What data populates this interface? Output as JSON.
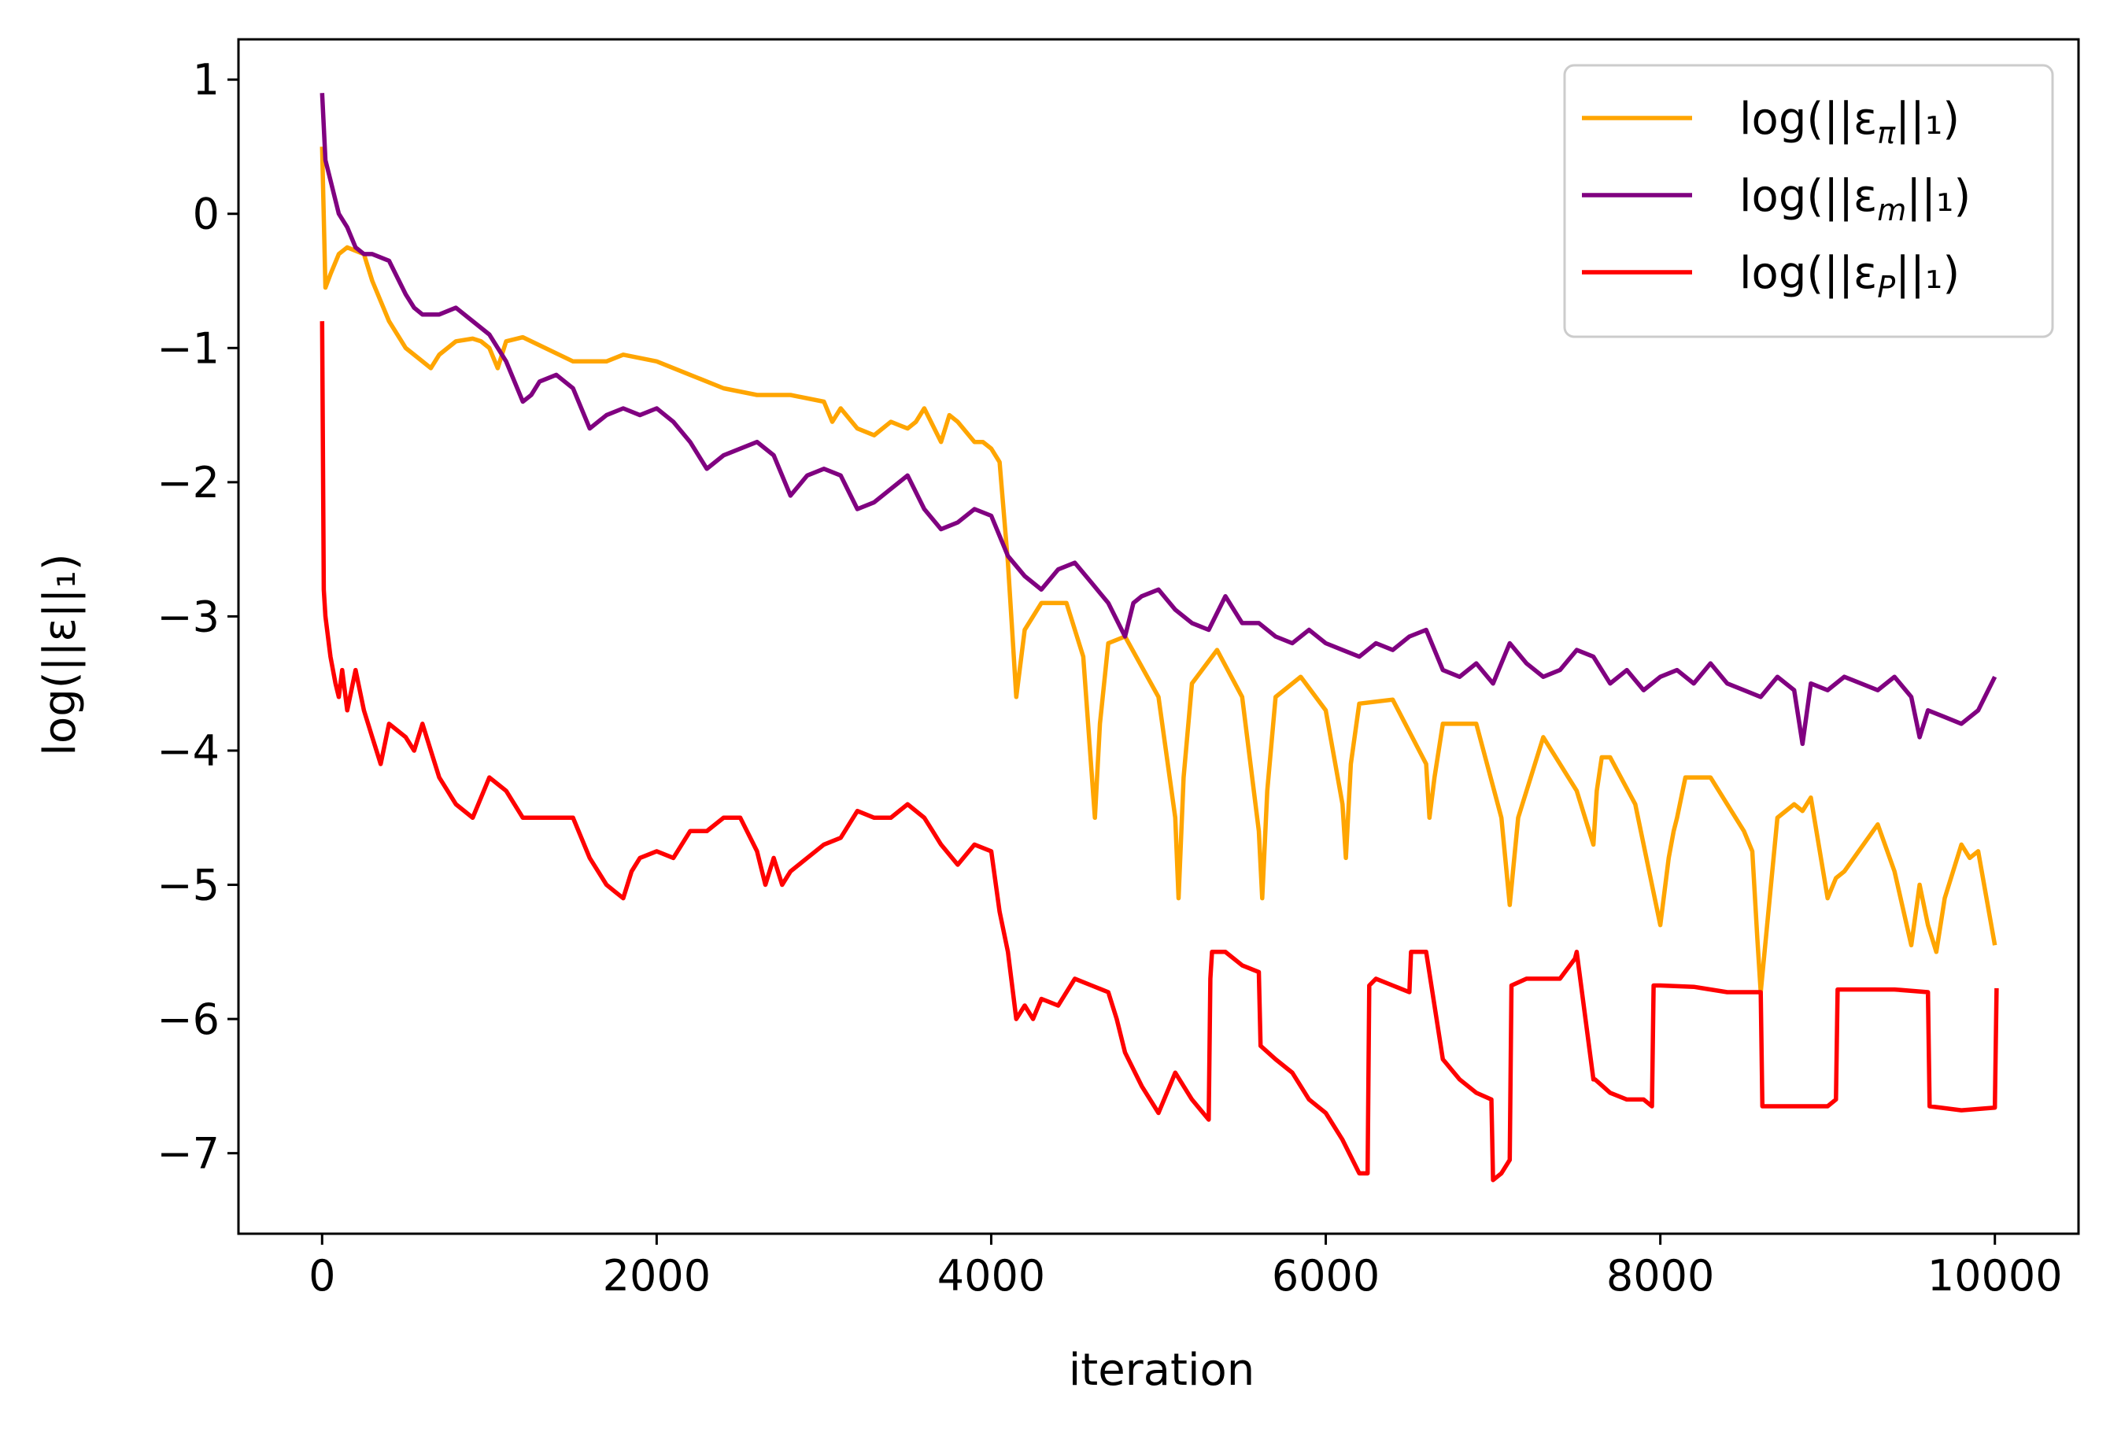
{
  "chart_data": {
    "type": "line",
    "title": "",
    "xlabel": "iteration",
    "ylabel": "log(||ε||₁)",
    "xlim": [
      -500,
      10500
    ],
    "ylim": [
      -7.6,
      1.3
    ],
    "xticks": [
      0,
      2000,
      4000,
      6000,
      8000,
      10000
    ],
    "xtick_labels": [
      "0",
      "2000",
      "4000",
      "6000",
      "8000",
      "10000"
    ],
    "yticks": [
      1,
      0,
      -1,
      -2,
      -3,
      -4,
      -5,
      -6,
      -7
    ],
    "ytick_labels": [
      "1",
      "0",
      "−1",
      "−2",
      "−3",
      "−4",
      "−5",
      "−6",
      "−7"
    ],
    "grid": false,
    "legend_position": "top-right",
    "series": [
      {
        "name": "log(||επ||₁)",
        "legend_label": {
          "prefix": "log(||ε",
          "sub": "π",
          "suffix": "||₁)"
        },
        "color": "#ffa500",
        "x": [
          0,
          20,
          50,
          100,
          150,
          250,
          300,
          400,
          500,
          600,
          650,
          700,
          800,
          900,
          950,
          1000,
          1050,
          1100,
          1200,
          1300,
          1500,
          1700,
          1800,
          2000,
          2200,
          2400,
          2600,
          2800,
          3000,
          3050,
          3100,
          3200,
          3300,
          3400,
          3500,
          3550,
          3600,
          3700,
          3750,
          3800,
          3900,
          3950,
          4000,
          4050,
          4100,
          4130,
          4150,
          4200,
          4300,
          4450,
          4550,
          4620,
          4650,
          4700,
          4800,
          5000,
          5100,
          5120,
          5150,
          5200,
          5350,
          5500,
          5600,
          5620,
          5650,
          5700,
          5850,
          6000,
          6100,
          6120,
          6150,
          6200,
          6400,
          6600,
          6620,
          6650,
          6700,
          6900,
          7050,
          7100,
          7150,
          7300,
          7500,
          7600,
          7620,
          7650,
          7700,
          7850,
          8000,
          8050,
          8080,
          8100,
          8150,
          8300,
          8500,
          8550,
          8580,
          8600,
          8700,
          8800,
          8850,
          8900,
          9000,
          9050,
          9100,
          9300,
          9400,
          9500,
          9550,
          9600,
          9650,
          9700,
          9800,
          9850,
          9900,
          10000
        ],
        "y": [
          0.5,
          -0.55,
          -0.45,
          -0.3,
          -0.25,
          -0.3,
          -0.5,
          -0.8,
          -1.0,
          -1.1,
          -1.15,
          -1.05,
          -0.95,
          -0.93,
          -0.95,
          -1.0,
          -1.15,
          -0.95,
          -0.92,
          -0.98,
          -1.1,
          -1.1,
          -1.05,
          -1.1,
          -1.2,
          -1.3,
          -1.35,
          -1.35,
          -1.4,
          -1.55,
          -1.45,
          -1.6,
          -1.65,
          -1.55,
          -1.6,
          -1.55,
          -1.45,
          -1.7,
          -1.5,
          -1.55,
          -1.7,
          -1.7,
          -1.75,
          -1.85,
          -2.6,
          -3.2,
          -3.6,
          -3.1,
          -2.9,
          -2.9,
          -3.3,
          -4.5,
          -3.8,
          -3.2,
          -3.15,
          -3.6,
          -4.5,
          -5.1,
          -4.2,
          -3.5,
          -3.25,
          -3.6,
          -4.6,
          -5.1,
          -4.3,
          -3.6,
          -3.45,
          -3.7,
          -4.4,
          -4.8,
          -4.1,
          -3.65,
          -3.62,
          -4.1,
          -4.5,
          -4.2,
          -3.8,
          -3.8,
          -4.5,
          -5.15,
          -4.5,
          -3.9,
          -4.3,
          -4.7,
          -4.3,
          -4.05,
          -4.05,
          -4.4,
          -5.3,
          -4.8,
          -4.6,
          -4.5,
          -4.2,
          -4.2,
          -4.6,
          -4.75,
          -5.4,
          -5.8,
          -4.5,
          -4.4,
          -4.45,
          -4.35,
          -5.1,
          -4.95,
          -4.9,
          -4.55,
          -4.9,
          -5.45,
          -5.0,
          -5.3,
          -5.5,
          -5.1,
          -4.7,
          -4.8,
          -4.75,
          -5.45
        ]
      },
      {
        "name": "log(||εm||₁)",
        "legend_label": {
          "prefix": "log(||ε",
          "sub": "m",
          "suffix": "||₁)"
        },
        "color": "#800080",
        "x": [
          0,
          20,
          50,
          100,
          150,
          200,
          250,
          300,
          400,
          500,
          550,
          600,
          700,
          800,
          900,
          1000,
          1100,
          1200,
          1250,
          1300,
          1400,
          1500,
          1600,
          1700,
          1800,
          1900,
          2000,
          2100,
          2200,
          2300,
          2400,
          2500,
          2600,
          2700,
          2800,
          2900,
          3000,
          3100,
          3200,
          3300,
          3400,
          3500,
          3600,
          3700,
          3800,
          3900,
          4000,
          4100,
          4200,
          4300,
          4400,
          4500,
          4600,
          4700,
          4800,
          4850,
          4900,
          5000,
          5100,
          5200,
          5300,
          5400,
          5500,
          5600,
          5700,
          5800,
          5900,
          6000,
          6100,
          6200,
          6300,
          6400,
          6500,
          6600,
          6700,
          6800,
          6900,
          7000,
          7100,
          7200,
          7300,
          7400,
          7500,
          7600,
          7700,
          7800,
          7900,
          8000,
          8100,
          8200,
          8300,
          8400,
          8500,
          8600,
          8700,
          8800,
          8850,
          8900,
          9000,
          9100,
          9200,
          9300,
          9400,
          9500,
          9550,
          9600,
          9700,
          9800,
          9900,
          10000
        ],
        "y": [
          0.9,
          0.4,
          0.25,
          0.0,
          -0.1,
          -0.25,
          -0.3,
          -0.3,
          -0.35,
          -0.6,
          -0.7,
          -0.75,
          -0.75,
          -0.7,
          -0.8,
          -0.9,
          -1.1,
          -1.4,
          -1.35,
          -1.25,
          -1.2,
          -1.3,
          -1.6,
          -1.5,
          -1.45,
          -1.5,
          -1.45,
          -1.55,
          -1.7,
          -1.9,
          -1.8,
          -1.75,
          -1.7,
          -1.8,
          -2.1,
          -1.95,
          -1.9,
          -1.95,
          -2.2,
          -2.15,
          -2.05,
          -1.95,
          -2.2,
          -2.35,
          -2.3,
          -2.2,
          -2.25,
          -2.55,
          -2.7,
          -2.8,
          -2.65,
          -2.6,
          -2.75,
          -2.9,
          -3.15,
          -2.9,
          -2.85,
          -2.8,
          -2.95,
          -3.05,
          -3.1,
          -2.85,
          -3.05,
          -3.05,
          -3.15,
          -3.2,
          -3.1,
          -3.2,
          -3.25,
          -3.3,
          -3.2,
          -3.25,
          -3.15,
          -3.1,
          -3.4,
          -3.45,
          -3.35,
          -3.5,
          -3.2,
          -3.35,
          -3.45,
          -3.4,
          -3.25,
          -3.3,
          -3.5,
          -3.4,
          -3.55,
          -3.45,
          -3.4,
          -3.5,
          -3.35,
          -3.5,
          -3.55,
          -3.6,
          -3.45,
          -3.55,
          -3.95,
          -3.5,
          -3.55,
          -3.45,
          -3.5,
          -3.55,
          -3.45,
          -3.6,
          -3.9,
          -3.7,
          -3.75,
          -3.8,
          -3.7,
          -3.45
        ]
      },
      {
        "name": "log(||εP||₁)",
        "legend_label": {
          "prefix": "log(||ε",
          "sub": "P",
          "suffix": "||₁)"
        },
        "color": "#ff0000",
        "x": [
          0,
          10,
          20,
          50,
          80,
          100,
          120,
          150,
          200,
          250,
          300,
          350,
          400,
          500,
          550,
          600,
          650,
          700,
          750,
          800,
          900,
          1000,
          1100,
          1200,
          1300,
          1400,
          1500,
          1600,
          1700,
          1750,
          1800,
          1850,
          1900,
          2000,
          2100,
          2200,
          2300,
          2400,
          2500,
          2600,
          2650,
          2700,
          2750,
          2800,
          2900,
          3000,
          3100,
          3200,
          3300,
          3400,
          3500,
          3600,
          3650,
          3700,
          3800,
          3900,
          4000,
          4050,
          4100,
          4150,
          4200,
          4250,
          4300,
          4400,
          4500,
          4600,
          4700,
          4750,
          4800,
          4900,
          5000,
          5100,
          5200,
          5300,
          5310,
          5320,
          5400,
          5500,
          5600,
          5610,
          5700,
          5800,
          5900,
          6000,
          6100,
          6200,
          6250,
          6260,
          6300,
          6400,
          6500,
          6510,
          6600,
          6700,
          6800,
          6900,
          6990,
          7000,
          7050,
          7100,
          7110,
          7200,
          7400,
          7490,
          7500,
          7600,
          7610,
          7700,
          7800,
          7900,
          7950,
          7960,
          8000,
          8200,
          8400,
          8600,
          8610,
          8800,
          9000,
          9050,
          9060,
          9200,
          9400,
          9600,
          9610,
          9800,
          10000,
          10010
        ],
        "y": [
          -0.8,
          -2.8,
          -3.0,
          -3.3,
          -3.5,
          -3.6,
          -3.4,
          -3.7,
          -3.4,
          -3.7,
          -3.9,
          -4.1,
          -3.8,
          -3.9,
          -4.0,
          -3.8,
          -4.0,
          -4.2,
          -4.3,
          -4.4,
          -4.5,
          -4.2,
          -4.3,
          -4.5,
          -4.5,
          -4.5,
          -4.5,
          -4.8,
          -5.0,
          -5.05,
          -5.1,
          -4.9,
          -4.8,
          -4.75,
          -4.8,
          -4.6,
          -4.6,
          -4.5,
          -4.5,
          -4.75,
          -5.0,
          -4.8,
          -5.0,
          -4.9,
          -4.8,
          -4.7,
          -4.65,
          -4.45,
          -4.5,
          -4.5,
          -4.4,
          -4.5,
          -4.6,
          -4.7,
          -4.85,
          -4.7,
          -4.75,
          -5.2,
          -5.5,
          -6.0,
          -5.9,
          -6.0,
          -5.85,
          -5.9,
          -5.7,
          -5.75,
          -5.8,
          -6.0,
          -6.25,
          -6.5,
          -6.7,
          -6.4,
          -6.6,
          -6.75,
          -5.7,
          -5.5,
          -5.5,
          -5.6,
          -5.65,
          -6.2,
          -6.3,
          -6.4,
          -6.6,
          -6.7,
          -6.9,
          -7.15,
          -7.15,
          -5.75,
          -5.7,
          -5.75,
          -5.8,
          -5.5,
          -5.5,
          -6.3,
          -6.45,
          -6.55,
          -6.6,
          -7.2,
          -7.15,
          -7.05,
          -5.75,
          -5.7,
          -5.7,
          -5.55,
          -5.5,
          -6.45,
          -6.45,
          -6.55,
          -6.6,
          -6.6,
          -6.65,
          -5.75,
          -5.75,
          -5.76,
          -5.8,
          -5.8,
          -6.65,
          -6.65,
          -6.65,
          -6.6,
          -5.78,
          -5.78,
          -5.78,
          -5.8,
          -6.65,
          -6.68,
          -6.66,
          -5.77
        ]
      }
    ]
  }
}
